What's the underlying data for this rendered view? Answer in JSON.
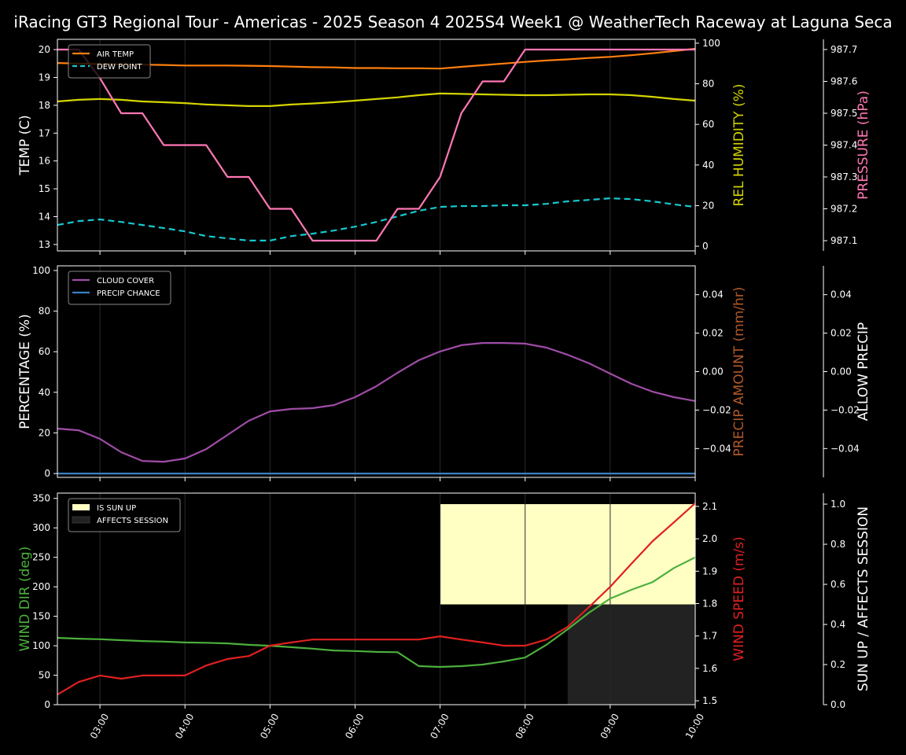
{
  "title": "iRacing GT3 Regional Tour - Americas - 2025 Season 4 2025S4 Week1 @ WeatherTech Raceway at Laguna Seca",
  "chart_data": {
    "type": "line",
    "x": [
      "02:30",
      "02:45",
      "03:00",
      "03:15",
      "03:30",
      "03:45",
      "04:00",
      "04:15",
      "04:30",
      "04:45",
      "05:00",
      "05:15",
      "05:30",
      "05:45",
      "06:00",
      "06:15",
      "06:30",
      "06:45",
      "07:00",
      "07:15",
      "07:30",
      "07:45",
      "08:00",
      "08:15",
      "08:30",
      "08:45",
      "09:00",
      "09:15",
      "09:30",
      "09:45",
      "10:00"
    ],
    "x_ticks": [
      "03:00",
      "04:00",
      "05:00",
      "06:00",
      "07:00",
      "08:00",
      "09:00",
      "10:00"
    ],
    "xlim": [
      "02:30",
      "10:00"
    ],
    "panels": [
      {
        "axes": {
          "left": {
            "label": "TEMP (C)",
            "color": "#ffffff",
            "ylim": [
              12.77,
              20.37
            ],
            "ticks": [
              "13",
              "14",
              "15",
              "16",
              "17",
              "18",
              "19",
              "20"
            ]
          },
          "right": {
            "label": "REL HUMIDITY (%)",
            "color": "#d4d400",
            "ylim": [
              -2.3,
              101.9
            ],
            "ticks": [
              "0",
              "20",
              "40",
              "60",
              "80",
              "100"
            ]
          },
          "right2": {
            "label": "PRESSURE (hPa)",
            "color": "#ff77b4",
            "ylim": [
              987.068,
              987.732
            ],
            "ticks": [
              "987.1",
              "987.2",
              "987.3",
              "987.4",
              "987.5",
              "987.6",
              "987.7"
            ]
          }
        },
        "series": [
          {
            "name": "AIR TEMP",
            "axis": "left",
            "color": "#ff7f0e",
            "dash": false,
            "legend": true,
            "values": [
              19.52,
              19.5,
              19.48,
              19.47,
              19.46,
              19.45,
              19.43,
              19.43,
              19.43,
              19.42,
              19.41,
              19.39,
              19.37,
              19.36,
              19.34,
              19.34,
              19.33,
              19.33,
              19.32,
              19.38,
              19.44,
              19.5,
              19.56,
              19.61,
              19.65,
              19.7,
              19.74,
              19.8,
              19.87,
              19.95,
              20.03
            ]
          },
          {
            "name": "DEW POINT",
            "axis": "left",
            "color": "#17c8cf",
            "dash": true,
            "legend": true,
            "values": [
              13.7,
              13.84,
              13.9,
              13.81,
              13.7,
              13.59,
              13.47,
              13.3,
              13.22,
              13.14,
              13.14,
              13.3,
              13.39,
              13.5,
              13.64,
              13.81,
              14.01,
              14.21,
              14.35,
              14.38,
              14.38,
              14.41,
              14.41,
              14.46,
              14.55,
              14.6,
              14.66,
              14.63,
              14.55,
              14.44,
              14.35
            ]
          },
          {
            "name": "REL HUMIDITY",
            "axis": "right",
            "color": "#d4d400",
            "dash": false,
            "legend": false,
            "values": [
              71.3,
              72.1,
              72.5,
              72.1,
              71.3,
              70.9,
              70.5,
              69.8,
              69.4,
              69.0,
              69.0,
              69.8,
              70.3,
              70.9,
              71.7,
              72.5,
              73.3,
              74.4,
              75.2,
              75.0,
              74.8,
              74.6,
              74.4,
              74.4,
              74.6,
              74.8,
              74.8,
              74.4,
              73.6,
              72.5,
              71.7
            ]
          },
          {
            "name": "PRESSURE",
            "axis": "right2",
            "color": "#ff77b4",
            "dash": false,
            "legend": false,
            "values": [
              987.7,
              987.7,
              987.61,
              987.5,
              987.5,
              987.4,
              987.4,
              987.4,
              987.3,
              987.3,
              987.2,
              987.2,
              987.1,
              987.1,
              987.1,
              987.1,
              987.2,
              987.2,
              987.3,
              987.5,
              987.6,
              987.6,
              987.7,
              987.7,
              987.7,
              987.7,
              987.7,
              987.7,
              987.7,
              987.7,
              987.7
            ]
          }
        ]
      },
      {
        "axes": {
          "left": {
            "label": "PERCENTAGE (%)",
            "color": "#ffffff",
            "ylim": [
              -1.9,
              102.3
            ],
            "ticks": [
              "0",
              "20",
              "40",
              "60",
              "80",
              "100"
            ]
          },
          "right": {
            "label": "PRECIP AMOUNT (mm/hr)",
            "color": "#b0582a",
            "ylim": [
              -0.055,
              0.055
            ],
            "ticks": [
              "−0.04",
              "−0.02",
              "0.00",
              "0.02",
              "0.04"
            ]
          },
          "right2": {
            "label": "ALLOW PRECIP",
            "color": "#ffffff",
            "ylim": [
              -0.055,
              0.055
            ],
            "ticks": [
              "−0.04",
              "−0.02",
              "0.00",
              "0.02",
              "0.04"
            ]
          }
        },
        "series": [
          {
            "name": "CLOUD COVER",
            "axis": "left",
            "color": "#a04ca8",
            "dash": false,
            "legend": true,
            "values": [
              22.1,
              21.3,
              17.1,
              10.5,
              6.2,
              5.8,
              7.4,
              12.0,
              19.0,
              26.0,
              30.6,
              31.8,
              32.2,
              33.7,
              37.6,
              43.0,
              49.6,
              55.8,
              60.1,
              63.2,
              64.3,
              64.3,
              64.0,
              62.0,
              58.5,
              54.3,
              49.2,
              44.2,
              40.3,
              37.6,
              35.7
            ]
          },
          {
            "name": "PRECIP CHANCE",
            "axis": "left",
            "color": "#3a80c4",
            "dash": false,
            "legend": true,
            "values": [
              0,
              0,
              0,
              0,
              0,
              0,
              0,
              0,
              0,
              0,
              0,
              0,
              0,
              0,
              0,
              0,
              0,
              0,
              0,
              0,
              0,
              0,
              0,
              0,
              0,
              0,
              0,
              0,
              0,
              0,
              0
            ]
          }
        ]
      },
      {
        "axes": {
          "left": {
            "label": "WIND DIR (deg)",
            "color": "#4caf3c",
            "ylim": [
              0,
              359
            ],
            "ticks": [
              "0",
              "50",
              "100",
              "150",
              "200",
              "250",
              "300",
              "350"
            ]
          },
          "right": {
            "label": "WIND SPEED (m/s)",
            "color": "#e02020",
            "ylim": [
              1.488,
              2.141
            ],
            "ticks": [
              "1.5",
              "1.6",
              "1.7",
              "1.8",
              "1.9",
              "2.0",
              "2.1"
            ]
          },
          "right2": {
            "label": "SUN UP / AFFECTS SESSION",
            "color": "#ffffff",
            "ylim": [
              0,
              1.055
            ],
            "ticks": [
              "0.0",
              "0.2",
              "0.4",
              "0.6",
              "0.8",
              "1.0"
            ]
          }
        },
        "bands": [
          {
            "name": "IS SUN UP",
            "axis": "right2",
            "color": "#ffffc4",
            "start": "07:00",
            "end": "10:00",
            "bottom": 0.5,
            "top": 1.0
          },
          {
            "name": "AFFECTS SESSION",
            "axis": "right2",
            "color": "#222222",
            "start": "08:30",
            "end": "10:00",
            "bottom": 0.0,
            "top": 0.5
          }
        ],
        "series": [
          {
            "name": "WIND DIR",
            "axis": "left",
            "color": "#4caf3c",
            "dash": false,
            "legend": false,
            "values": [
              113.5,
              112,
              111,
              109.5,
              108,
              107,
              105.5,
              105,
              104,
              101.5,
              100,
              97.5,
              95,
              92,
              91,
              89.5,
              89,
              65.4,
              64,
              65.4,
              68,
              73.4,
              80,
              101.5,
              128,
              156,
              180,
              195,
              208,
              232,
              250
            ]
          },
          {
            "name": "WIND SPEED",
            "axis": "right",
            "color": "#e02020",
            "dash": false,
            "legend": false,
            "values": [
              1.519,
              1.558,
              1.578,
              1.568,
              1.578,
              1.578,
              1.578,
              1.609,
              1.629,
              1.638,
              1.67,
              1.68,
              1.689,
              1.689,
              1.689,
              1.689,
              1.689,
              1.689,
              1.699,
              1.689,
              1.68,
              1.67,
              1.67,
              1.689,
              1.728,
              1.789,
              1.852,
              1.923,
              1.993,
              2.051,
              2.11
            ]
          }
        ]
      }
    ]
  }
}
